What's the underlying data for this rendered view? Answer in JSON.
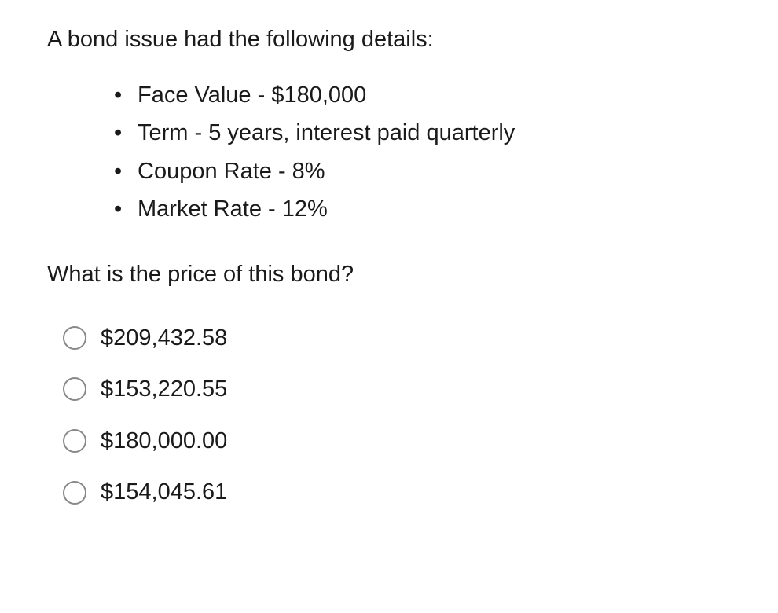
{
  "question": {
    "intro": "A bond issue had the following details:",
    "details": [
      "Face Value - $180,000",
      "Term - 5 years, interest paid quarterly",
      "Coupon Rate - 8%",
      "Market Rate - 12%"
    ],
    "prompt": "What is the price of this bond?"
  },
  "options": [
    "$209,432.58",
    "$153,220.55",
    "$180,000.00",
    "$154,045.61"
  ],
  "colors": {
    "text": "#1a1a1a",
    "radio_border": "#888888",
    "background": "#ffffff"
  },
  "typography": {
    "font_size": 29,
    "font_family": "Helvetica Neue"
  }
}
